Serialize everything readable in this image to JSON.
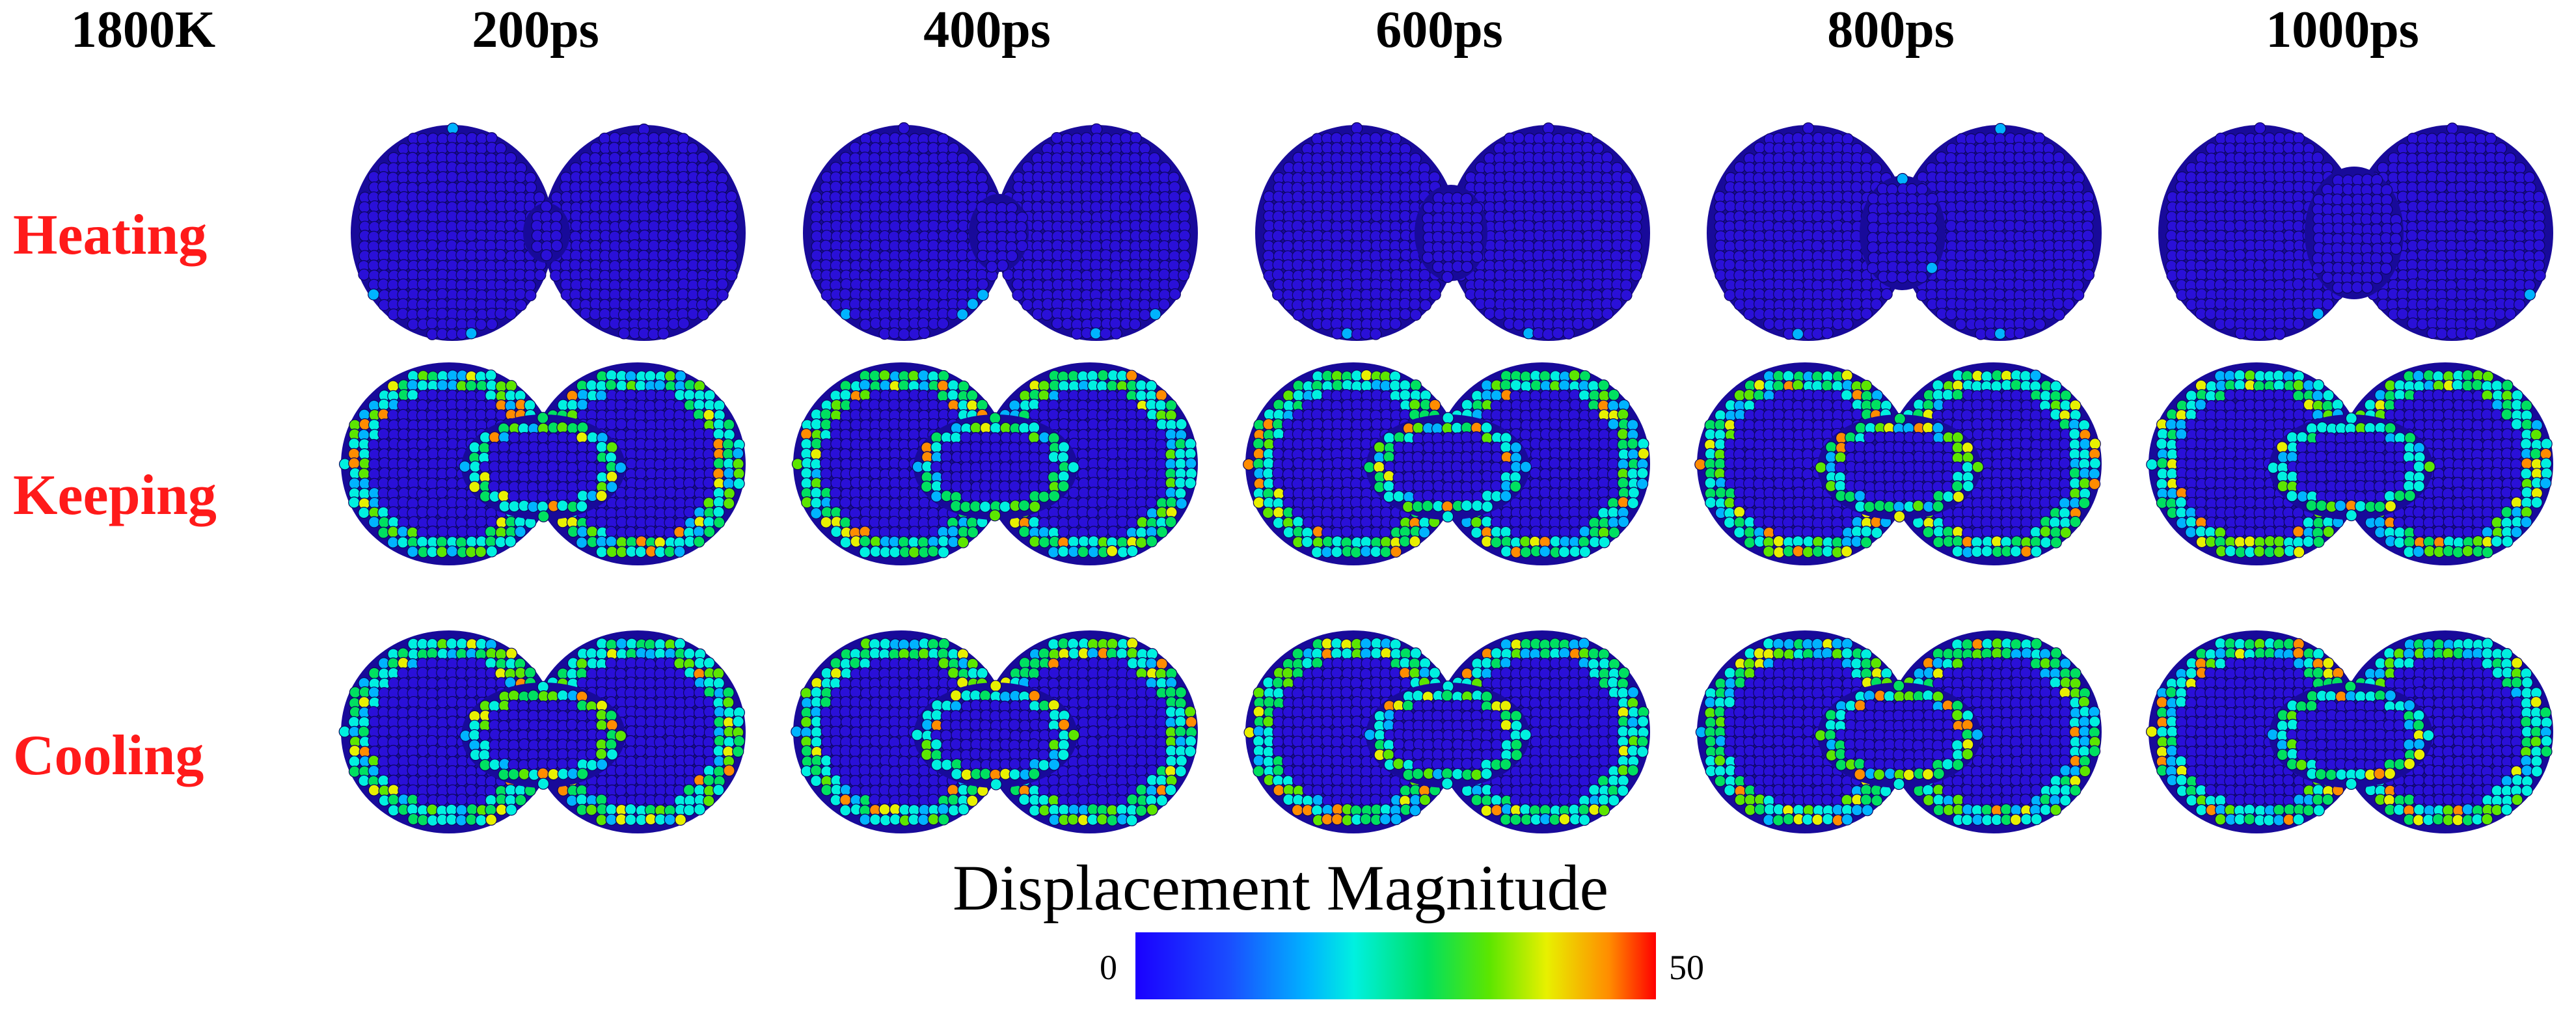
{
  "corner_label": "1800K",
  "times": [
    "200ps",
    "400ps",
    "600ps",
    "800ps",
    "1000ps"
  ],
  "stages": [
    "Heating",
    "Keeping",
    "Cooling"
  ],
  "colorbar": {
    "title": "Displacement Magnitude",
    "min_label": "0",
    "max_label": "50",
    "colors": [
      "#1a00ff",
      "#1a4dff",
      "#00b3ff",
      "#00f0e0",
      "#00e060",
      "#5ce600",
      "#e8f000",
      "#ff8c00",
      "#ff0000"
    ]
  },
  "atom_base_color": "#2a10d8"
}
